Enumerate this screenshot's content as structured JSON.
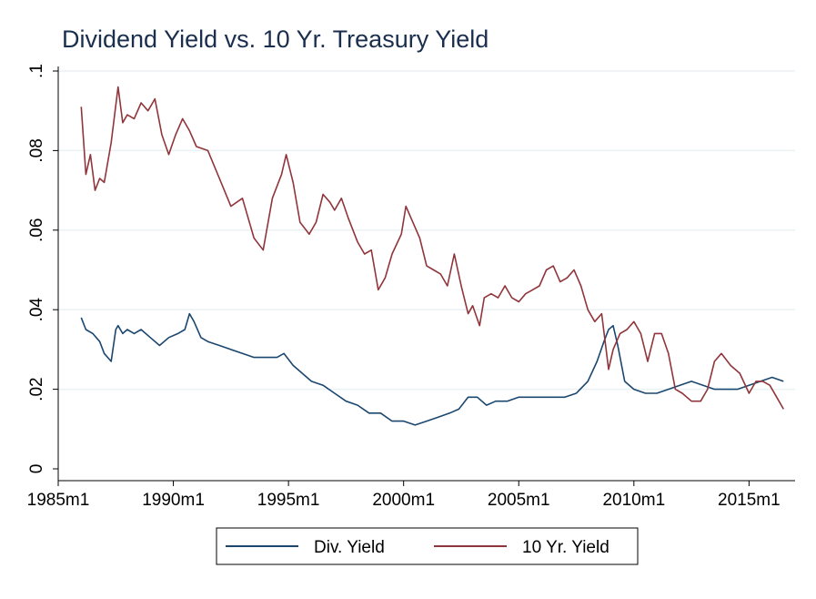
{
  "chart_data": {
    "type": "line",
    "title": "Dividend Yield vs. 10 Yr. Treasury Yield",
    "xlabel": "",
    "ylabel": "",
    "xlim": [
      1985.0,
      2017.0
    ],
    "ylim": [
      0,
      0.1
    ],
    "x_ticks": [
      1985,
      1990,
      1995,
      2000,
      2005,
      2010,
      2015
    ],
    "x_tick_labels": [
      "1985m1",
      "1990m1",
      "1995m1",
      "2000m1",
      "2005m1",
      "2010m1",
      "2015m1"
    ],
    "y_ticks": [
      0,
      0.02,
      0.04,
      0.06,
      0.08,
      0.1
    ],
    "y_tick_labels": [
      "0",
      ".02",
      ".04",
      ".06",
      ".08",
      ".1"
    ],
    "grid": true,
    "legend_position": "bottom",
    "series": [
      {
        "name": "Div. Yield",
        "color": "#1a476f",
        "x": [
          1986.0,
          1986.2,
          1986.5,
          1986.8,
          1987.0,
          1987.3,
          1987.5,
          1987.6,
          1987.8,
          1988.0,
          1988.3,
          1988.6,
          1989.0,
          1989.4,
          1989.8,
          1990.2,
          1990.5,
          1990.7,
          1990.9,
          1991.2,
          1991.5,
          1992.0,
          1992.5,
          1993.0,
          1993.5,
          1994.0,
          1994.5,
          1994.8,
          1995.2,
          1995.6,
          1996.0,
          1996.5,
          1997.0,
          1997.5,
          1998.0,
          1998.5,
          1999.0,
          1999.5,
          2000.0,
          2000.5,
          2001.0,
          2001.5,
          2002.0,
          2002.4,
          2002.8,
          2003.2,
          2003.6,
          2004.0,
          2004.5,
          2005.0,
          2005.5,
          2006.0,
          2006.5,
          2007.0,
          2007.5,
          2008.0,
          2008.4,
          2008.7,
          2008.9,
          2009.1,
          2009.3,
          2009.6,
          2010.0,
          2010.5,
          2011.0,
          2011.5,
          2012.0,
          2012.5,
          2013.0,
          2013.5,
          2014.0,
          2014.5,
          2015.0,
          2015.5,
          2016.0,
          2016.5
        ],
        "values": [
          0.038,
          0.035,
          0.034,
          0.032,
          0.029,
          0.027,
          0.035,
          0.036,
          0.034,
          0.035,
          0.034,
          0.035,
          0.033,
          0.031,
          0.033,
          0.034,
          0.035,
          0.039,
          0.037,
          0.033,
          0.032,
          0.031,
          0.03,
          0.029,
          0.028,
          0.028,
          0.028,
          0.029,
          0.026,
          0.024,
          0.022,
          0.021,
          0.019,
          0.017,
          0.016,
          0.014,
          0.014,
          0.012,
          0.012,
          0.011,
          0.012,
          0.013,
          0.014,
          0.015,
          0.018,
          0.018,
          0.016,
          0.017,
          0.017,
          0.018,
          0.018,
          0.018,
          0.018,
          0.018,
          0.019,
          0.022,
          0.027,
          0.032,
          0.035,
          0.036,
          0.031,
          0.022,
          0.02,
          0.019,
          0.019,
          0.02,
          0.021,
          0.022,
          0.021,
          0.02,
          0.02,
          0.02,
          0.021,
          0.022,
          0.023,
          0.022
        ]
      },
      {
        "name": "10 Yr. Yield",
        "color": "#90353b",
        "x": [
          1986.0,
          1986.2,
          1986.4,
          1986.6,
          1986.8,
          1987.0,
          1987.3,
          1987.6,
          1987.8,
          1988.0,
          1988.3,
          1988.6,
          1988.9,
          1989.2,
          1989.5,
          1989.8,
          1990.1,
          1990.4,
          1990.7,
          1991.0,
          1991.5,
          1992.0,
          1992.5,
          1993.0,
          1993.5,
          1993.9,
          1994.3,
          1994.7,
          1994.9,
          1995.2,
          1995.5,
          1995.9,
          1996.2,
          1996.5,
          1996.8,
          1997.0,
          1997.3,
          1997.6,
          1998.0,
          1998.3,
          1998.6,
          1998.9,
          1999.2,
          1999.5,
          1999.9,
          2000.1,
          2000.4,
          2000.7,
          2001.0,
          2001.3,
          2001.6,
          2001.9,
          2002.2,
          2002.5,
          2002.8,
          2003.0,
          2003.3,
          2003.5,
          2003.8,
          2004.1,
          2004.4,
          2004.7,
          2005.0,
          2005.3,
          2005.6,
          2005.9,
          2006.2,
          2006.5,
          2006.8,
          2007.1,
          2007.4,
          2007.7,
          2008.0,
          2008.3,
          2008.6,
          2008.9,
          2009.1,
          2009.4,
          2009.7,
          2010.0,
          2010.3,
          2010.6,
          2010.9,
          2011.2,
          2011.5,
          2011.8,
          2012.1,
          2012.5,
          2012.9,
          2013.2,
          2013.5,
          2013.8,
          2014.2,
          2014.6,
          2015.0,
          2015.3,
          2015.6,
          2015.9,
          2016.2,
          2016.5
        ],
        "values": [
          0.091,
          0.074,
          0.079,
          0.07,
          0.073,
          0.072,
          0.082,
          0.096,
          0.087,
          0.089,
          0.088,
          0.092,
          0.09,
          0.093,
          0.084,
          0.079,
          0.084,
          0.088,
          0.085,
          0.081,
          0.08,
          0.073,
          0.066,
          0.068,
          0.058,
          0.055,
          0.068,
          0.074,
          0.079,
          0.072,
          0.062,
          0.059,
          0.062,
          0.069,
          0.067,
          0.065,
          0.068,
          0.063,
          0.057,
          0.054,
          0.055,
          0.045,
          0.048,
          0.054,
          0.059,
          0.066,
          0.062,
          0.058,
          0.051,
          0.05,
          0.049,
          0.046,
          0.054,
          0.046,
          0.039,
          0.041,
          0.036,
          0.043,
          0.044,
          0.043,
          0.046,
          0.043,
          0.042,
          0.044,
          0.045,
          0.046,
          0.05,
          0.051,
          0.047,
          0.048,
          0.05,
          0.046,
          0.04,
          0.037,
          0.039,
          0.025,
          0.03,
          0.034,
          0.035,
          0.037,
          0.034,
          0.027,
          0.034,
          0.034,
          0.029,
          0.02,
          0.019,
          0.017,
          0.017,
          0.02,
          0.027,
          0.029,
          0.026,
          0.024,
          0.019,
          0.022,
          0.022,
          0.021,
          0.018,
          0.015
        ]
      }
    ]
  }
}
